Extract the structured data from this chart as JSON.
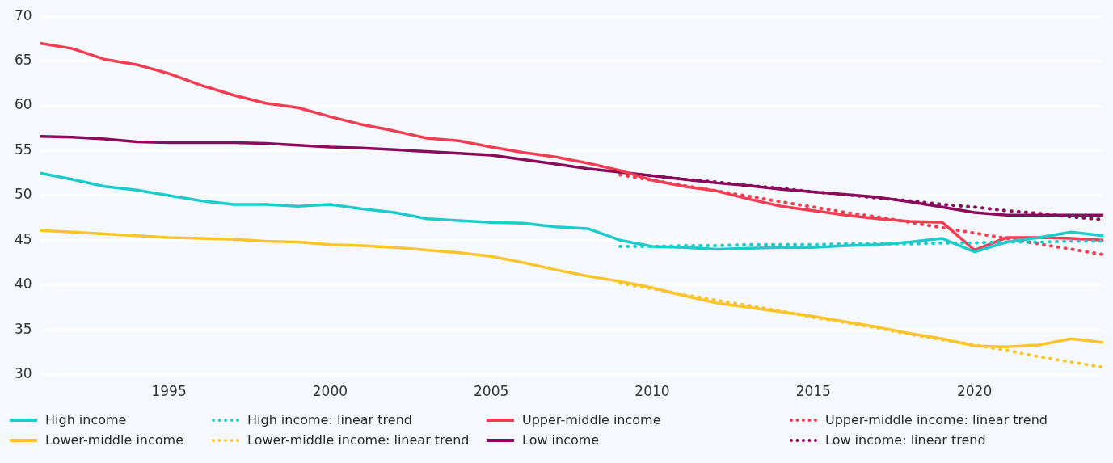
{
  "chart_data": {
    "type": "line",
    "x": [
      1991,
      1992,
      1993,
      1994,
      1995,
      1996,
      1997,
      1998,
      1999,
      2000,
      2001,
      2002,
      2003,
      2004,
      2005,
      2006,
      2007,
      2008,
      2009,
      2010,
      2011,
      2012,
      2013,
      2014,
      2015,
      2016,
      2017,
      2018,
      2019,
      2020,
      2021,
      2022,
      2023,
      2024
    ],
    "xlim": [
      1991,
      2024
    ],
    "xticks": [
      1995,
      2000,
      2005,
      2010,
      2015,
      2020
    ],
    "ylim": [
      30,
      70
    ],
    "yticks": [
      30,
      35,
      40,
      45,
      50,
      55,
      60,
      65,
      70
    ],
    "grid": "y",
    "legend": "bottom",
    "marker": "none",
    "series": [
      {
        "name": "High income",
        "color": "#1ecbcb",
        "line_style": "solid",
        "values": [
          52.5,
          51.8,
          51.0,
          50.6,
          50.0,
          49.4,
          49.0,
          49.0,
          48.8,
          49.0,
          48.5,
          48.1,
          47.4,
          47.2,
          47.0,
          46.9,
          46.5,
          46.3,
          45.0,
          44.3,
          44.2,
          44.0,
          44.1,
          44.2,
          44.2,
          44.4,
          44.5,
          44.8,
          45.2,
          43.7,
          44.8,
          45.3,
          45.9,
          45.5
        ]
      },
      {
        "name": "High income: linear trend",
        "color": "#1ecbcb",
        "line_style": "dotted",
        "x": [
          2009,
          2010,
          2011,
          2012,
          2013,
          2014,
          2015,
          2016,
          2017,
          2018,
          2019,
          2020,
          2021,
          2022,
          2023,
          2024
        ],
        "values": [
          44.3,
          44.3,
          44.4,
          44.4,
          44.5,
          44.5,
          44.5,
          44.6,
          44.6,
          44.6,
          44.7,
          44.7,
          44.8,
          44.8,
          44.9,
          44.9
        ]
      },
      {
        "name": "Upper-middle income",
        "color": "#f23d52",
        "line_style": "solid",
        "values": [
          67.0,
          66.4,
          65.2,
          64.6,
          63.6,
          62.3,
          61.2,
          60.3,
          59.8,
          58.8,
          57.9,
          57.2,
          56.4,
          56.1,
          55.4,
          54.8,
          54.3,
          53.6,
          52.8,
          51.7,
          51.0,
          50.5,
          49.6,
          48.8,
          48.3,
          47.8,
          47.4,
          47.1,
          47.0,
          43.9,
          45.3,
          45.3,
          45.2,
          45.0
        ]
      },
      {
        "name": "Upper-middle income: linear trend",
        "color": "#f23d52",
        "line_style": "dotted",
        "x": [
          2009,
          2010,
          2011,
          2012,
          2013,
          2014,
          2015,
          2016,
          2017,
          2018,
          2019,
          2020,
          2021,
          2022,
          2023,
          2024
        ],
        "values": [
          52.3,
          51.7,
          51.1,
          50.5,
          49.9,
          49.3,
          48.7,
          48.1,
          47.6,
          47.0,
          46.4,
          45.8,
          45.2,
          44.6,
          44.0,
          43.4
        ]
      },
      {
        "name": "Lower-middle income",
        "color": "#fcc42c",
        "line_style": "solid",
        "values": [
          46.1,
          45.9,
          45.7,
          45.5,
          45.3,
          45.2,
          45.1,
          44.9,
          44.8,
          44.5,
          44.4,
          44.2,
          43.9,
          43.6,
          43.2,
          42.5,
          41.7,
          41.0,
          40.4,
          39.7,
          38.8,
          38.0,
          37.5,
          37.0,
          36.5,
          35.9,
          35.3,
          34.6,
          34.0,
          33.2,
          33.1,
          33.3,
          34.0,
          33.6
        ]
      },
      {
        "name": "Lower-middle income: linear trend",
        "color": "#fcc42c",
        "line_style": "dotted",
        "x": [
          2009,
          2010,
          2011,
          2012,
          2013,
          2014,
          2015,
          2016,
          2017,
          2018,
          2019,
          2020,
          2021,
          2022,
          2023,
          2024
        ],
        "values": [
          40.2,
          39.6,
          38.9,
          38.3,
          37.7,
          37.1,
          36.4,
          35.8,
          35.2,
          34.5,
          33.9,
          33.3,
          32.7,
          32.0,
          31.4,
          30.8
        ]
      },
      {
        "name": "Low income",
        "color": "#8a0a5c",
        "line_style": "solid",
        "values": [
          56.6,
          56.5,
          56.3,
          56.0,
          55.9,
          55.9,
          55.9,
          55.8,
          55.6,
          55.4,
          55.3,
          55.1,
          54.9,
          54.7,
          54.5,
          54.0,
          53.5,
          53.0,
          52.6,
          52.2,
          51.8,
          51.4,
          51.1,
          50.7,
          50.4,
          50.1,
          49.8,
          49.3,
          48.7,
          48.1,
          47.8,
          47.8,
          47.8,
          47.8
        ]
      },
      {
        "name": "Low income: linear trend",
        "color": "#8a0a5c",
        "line_style": "dotted",
        "x": [
          2009,
          2010,
          2011,
          2012,
          2013,
          2014,
          2015,
          2016,
          2017,
          2018,
          2019,
          2020,
          2021,
          2022,
          2023,
          2024
        ],
        "values": [
          52.5,
          52.2,
          51.8,
          51.5,
          51.1,
          50.8,
          50.4,
          50.1,
          49.7,
          49.4,
          49.0,
          48.7,
          48.3,
          48.0,
          47.6,
          47.3
        ]
      }
    ]
  }
}
